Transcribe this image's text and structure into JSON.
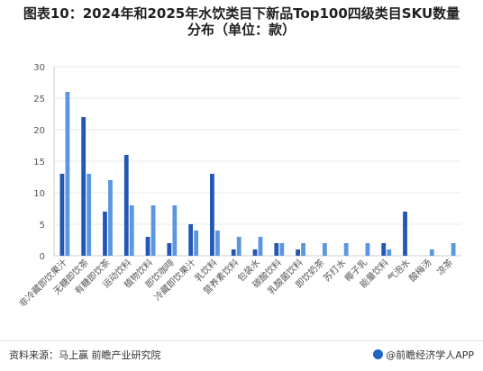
{
  "title": {
    "line1": "图表10：2024年和2025年水饮类目下新品Top100四级类目SKU数量",
    "line2": "分布（单位：款）"
  },
  "chart_data": {
    "type": "bar",
    "title": "图表10：2024年和2025年水饮类目下新品Top100四级类目SKU数量分布（单位：款）",
    "xlabel": "",
    "ylabel": "",
    "ylim": [
      0,
      30
    ],
    "yticks": [
      0,
      5,
      10,
      15,
      20,
      25,
      30
    ],
    "grid": true,
    "legend": "none",
    "categories": [
      "非冷藏即饮果汁",
      "无糖即饮茶",
      "有糖即饮茶",
      "运动饮料",
      "植物饮料",
      "即饮咖啡",
      "冷藏即饮果汁",
      "乳饮料",
      "营养素饮料",
      "包装水",
      "碳酸饮料",
      "乳酸菌饮料",
      "即饮奶茶",
      "苏打水",
      "椰子乳",
      "能量饮料",
      "气泡水",
      "酸梅汤",
      "凉茶"
    ],
    "series": [
      {
        "name": "",
        "color": "#2457b5",
        "values": [
          13,
          22,
          7,
          16,
          3,
          2,
          5,
          13,
          1,
          1,
          2,
          1,
          0,
          0,
          0,
          2,
          7,
          0,
          0
        ]
      },
      {
        "name": "",
        "color": "#5b96e0",
        "values": [
          26,
          13,
          12,
          8,
          8,
          8,
          4,
          4,
          3,
          3,
          2,
          2,
          2,
          2,
          2,
          1,
          0,
          1,
          2
        ]
      }
    ]
  },
  "footer": {
    "source": "资料来源：马上赢 前瞻产业研究院",
    "brand": "@前瞻经济学人APP"
  },
  "colors": {
    "axis": "#cccccc",
    "grid": "#e8e8e8",
    "tick_text": "#555555"
  }
}
